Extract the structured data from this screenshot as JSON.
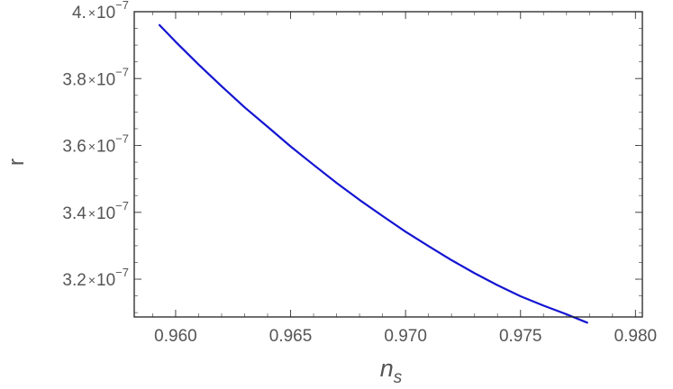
{
  "chart_data": {
    "type": "line",
    "xlabel": "n",
    "xlabel_sub": "s",
    "ylabel": "r",
    "xlim": [
      0.9582,
      0.9803
    ],
    "ylim": [
      3.087e-07,
      4e-07
    ],
    "grid": false,
    "x_ticks": [
      {
        "value": 0.96,
        "label": "0.960"
      },
      {
        "value": 0.965,
        "label": "0.965"
      },
      {
        "value": 0.97,
        "label": "0.970"
      },
      {
        "value": 0.975,
        "label": "0.975"
      },
      {
        "value": 0.98,
        "label": "0.980"
      }
    ],
    "y_ticks": [
      {
        "value": 3.2e-07,
        "mantissa": "3.2",
        "times": "×",
        "base": "10",
        "exponent": "−7"
      },
      {
        "value": 3.4e-07,
        "mantissa": "3.4",
        "times": "×",
        "base": "10",
        "exponent": "−7"
      },
      {
        "value": 3.6e-07,
        "mantissa": "3.6",
        "times": "×",
        "base": "10",
        "exponent": "−7"
      },
      {
        "value": 3.8e-07,
        "mantissa": "3.8",
        "times": "×",
        "base": "10",
        "exponent": "−7"
      },
      {
        "value": 4e-07,
        "mantissa": "4.",
        "times": "×",
        "base": "10",
        "exponent": "−7"
      }
    ],
    "series": [
      {
        "color": "#1414d2",
        "points": [
          [
            0.9593,
            3.96e-07
          ],
          [
            0.96,
            3.91e-07
          ],
          [
            0.961,
            3.842e-07
          ],
          [
            0.962,
            3.777e-07
          ],
          [
            0.963,
            3.714e-07
          ],
          [
            0.964,
            3.656e-07
          ],
          [
            0.965,
            3.597e-07
          ],
          [
            0.966,
            3.542e-07
          ],
          [
            0.967,
            3.488e-07
          ],
          [
            0.968,
            3.437e-07
          ],
          [
            0.969,
            3.389e-07
          ],
          [
            0.97,
            3.342e-07
          ],
          [
            0.971,
            3.299e-07
          ],
          [
            0.972,
            3.257e-07
          ],
          [
            0.973,
            3.218e-07
          ],
          [
            0.974,
            3.182e-07
          ],
          [
            0.975,
            3.149e-07
          ],
          [
            0.976,
            3.121e-07
          ],
          [
            0.977,
            3.095e-07
          ],
          [
            0.9779,
            3.07e-07
          ]
        ]
      }
    ]
  }
}
